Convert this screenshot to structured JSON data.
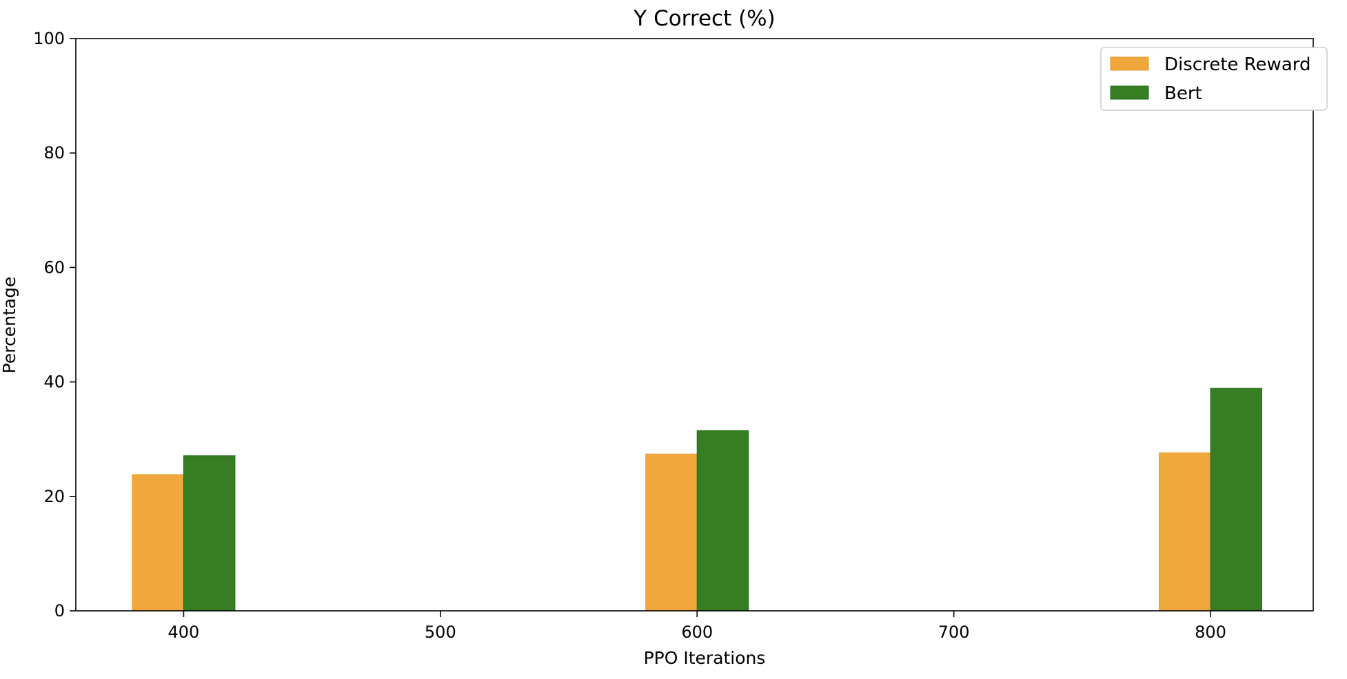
{
  "chart_data": {
    "type": "bar",
    "title": "Y Correct (%)",
    "xlabel": "PPO Iterations",
    "ylabel": "Percentage",
    "x": [
      400,
      600,
      800
    ],
    "xticks": [
      400,
      500,
      600,
      700,
      800
    ],
    "xlim": [
      358,
      840
    ],
    "ylim": [
      0,
      100
    ],
    "yticks": [
      0,
      20,
      40,
      60,
      80,
      100
    ],
    "grid": false,
    "legend_position": "top-right",
    "series": [
      {
        "name": "Discrete Reward",
        "values": [
          23.8,
          27.4,
          27.6
        ],
        "color": "#f0a83c"
      },
      {
        "name": "Bert",
        "values": [
          27.1,
          31.5,
          38.9
        ],
        "color": "#367d24"
      }
    ]
  }
}
